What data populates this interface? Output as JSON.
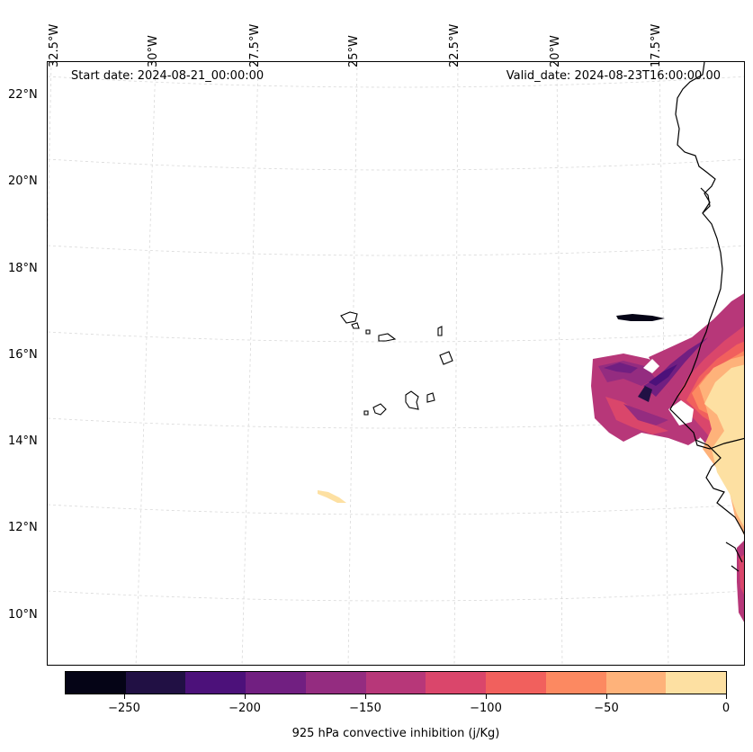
{
  "map": {
    "start_date": "Start date: 2024-08-21_00:00:00",
    "valid_date": "Valid_date: 2024-08-23T16:00:00.00",
    "longitude_labels": [
      "32.5°W",
      "30°W",
      "27.5°W",
      "25°W",
      "22.5°W",
      "20°W",
      "17.5°W"
    ],
    "latitude_labels": [
      "22°N",
      "20°N",
      "18°N",
      "16°N",
      "14°N",
      "12°N",
      "10°N"
    ],
    "gridlines": true,
    "coastline_color": "#000000"
  },
  "colorbar": {
    "title": "925 hPa convective inhibition (j/Kg)",
    "ticks": [
      "−250",
      "−200",
      "−150",
      "−100",
      "−50",
      "0"
    ],
    "colors": [
      "#050416",
      "#211044",
      "#4c117a",
      "#711f81",
      "#942c80",
      "#b73779",
      "#da466b",
      "#f1605d",
      "#fc8961",
      "#feb27a",
      "#fde0a2"
    ]
  }
}
